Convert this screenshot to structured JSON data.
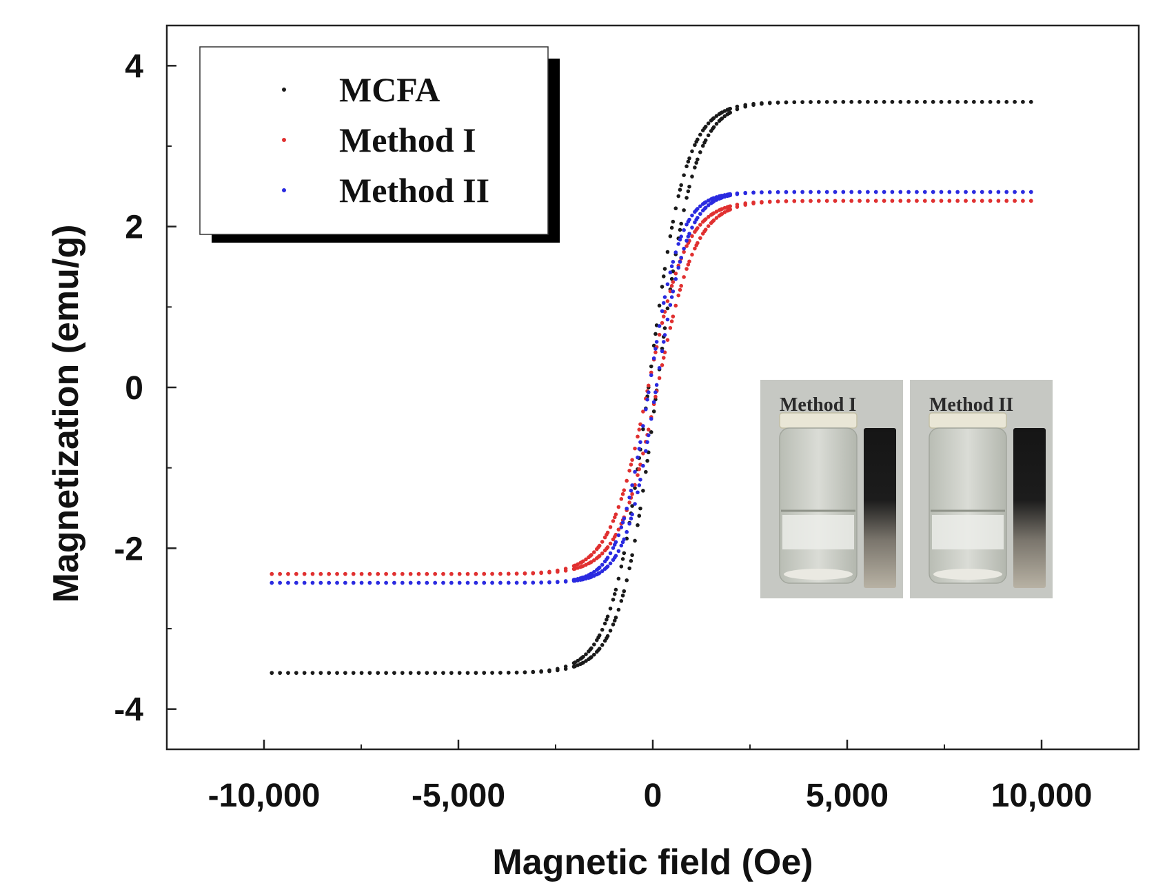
{
  "chart_data": {
    "type": "scatter",
    "title": "",
    "xlabel": "Magnetic field (Oe)",
    "ylabel": "Magnetization (emu/g)",
    "xlim": [
      -12500,
      12500
    ],
    "ylim": [
      -4.5,
      4.5
    ],
    "xticks": [
      -10000,
      -5000,
      0,
      5000,
      10000
    ],
    "xtick_labels": [
      "-10,000",
      "-5,000",
      "0",
      "5,000",
      "10,000"
    ],
    "yticks": [
      -4,
      -2,
      0,
      2,
      4
    ],
    "ytick_labels": [
      "-4",
      "-2",
      "0",
      "2",
      "4"
    ],
    "grid": false,
    "legend_position": "top-left",
    "series": [
      {
        "name": "MCFA",
        "color": "#1a1a1a",
        "ms": 3.55,
        "hc": 110,
        "h0": 950,
        "x_min": -9800,
        "x_max": 9800
      },
      {
        "name": "Method I",
        "color": "#e03030",
        "ms": 2.32,
        "hc": 120,
        "h0": 1000,
        "x_min": -9800,
        "x_max": 9800
      },
      {
        "name": "Method II",
        "color": "#2a2ae0",
        "ms": 2.43,
        "hc": 90,
        "h0": 800,
        "x_min": -9800,
        "x_max": 9800
      }
    ]
  },
  "inset": {
    "panels": [
      {
        "label": "Method I"
      },
      {
        "label": "Method II"
      }
    ]
  }
}
